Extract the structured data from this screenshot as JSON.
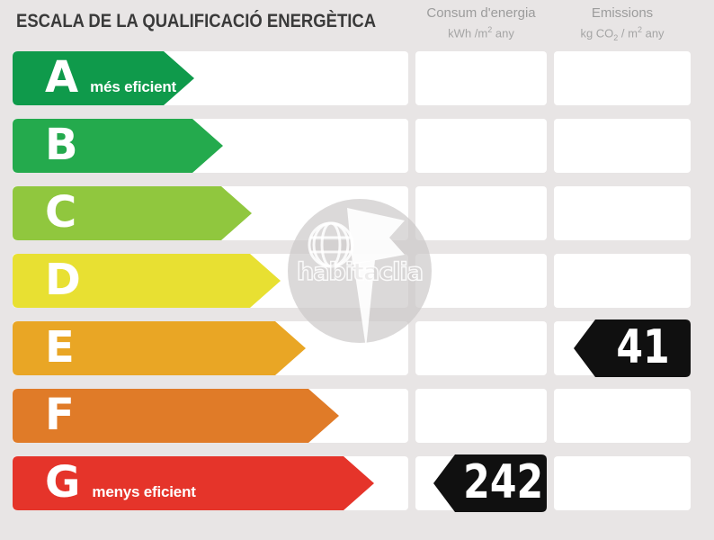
{
  "title": "ESCALA DE LA QUALIFICACIÓ ENERGÈTICA",
  "columns": {
    "consum": {
      "title": "Consum d'energia",
      "unit": {
        "pre": "kWh /m",
        "sup": "2",
        "post": " any"
      }
    },
    "emissions": {
      "title": "Emissions",
      "unit": {
        "pre": "kg CO",
        "sub": "2",
        "mid": " / m",
        "sup": "2",
        "post": " any"
      }
    }
  },
  "scale": {
    "rows": [
      {
        "grade": "A",
        "note": "més eficient",
        "color": "#0f9a4b",
        "arrow_width": 202
      },
      {
        "grade": "B",
        "note": "",
        "color": "#24aa4d",
        "arrow_width": 234
      },
      {
        "grade": "C",
        "note": "",
        "color": "#90c73e",
        "arrow_width": 266
      },
      {
        "grade": "D",
        "note": "",
        "color": "#e8e032",
        "arrow_width": 298
      },
      {
        "grade": "E",
        "note": "",
        "color": "#e9a625",
        "arrow_width": 326
      },
      {
        "grade": "F",
        "note": "",
        "color": "#e07b28",
        "arrow_width": 363
      },
      {
        "grade": "G",
        "note": "menys eficient",
        "color": "#e5342a",
        "arrow_width": 402
      }
    ]
  },
  "indicators": [
    {
      "column": "consum",
      "row": "G",
      "value": "242",
      "color": "#101010",
      "arrow_width": 126
    },
    {
      "column": "emissions",
      "row": "E",
      "value": "41",
      "color": "#101010",
      "arrow_width": 130
    }
  ],
  "watermark": {
    "text": "habitaclia"
  },
  "chart_data": {
    "type": "table",
    "title": "ESCALA DE LA QUALIFICACIÓ ENERGÈTICA",
    "columns": [
      "Consum d'energia (kWh/m² any)",
      "Emissions (kg CO₂/m² any)"
    ],
    "scale_grades": [
      "A més eficient",
      "B",
      "C",
      "D",
      "E",
      "F",
      "G menys eficient"
    ],
    "scale_colors": [
      "#0f9a4b",
      "#24aa4d",
      "#90c73e",
      "#e8e032",
      "#e9a625",
      "#e07b28",
      "#e5342a"
    ],
    "values": {
      "consum_kwh_m2_any": 242,
      "consum_grade": "G",
      "emissions_kg_co2_m2_any": 41,
      "emissions_grade": "E"
    }
  }
}
